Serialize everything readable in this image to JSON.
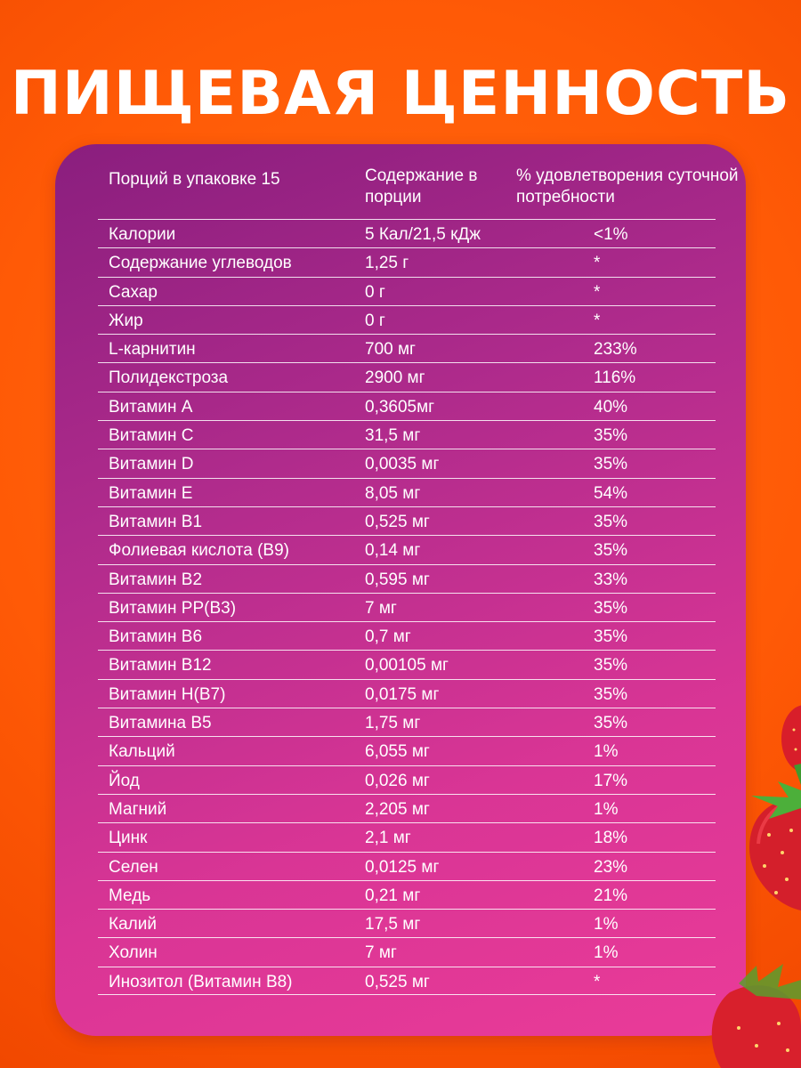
{
  "title": "ПИЩЕВАЯ ЦЕННОСТЬ",
  "header": {
    "col1": "Порций в упаковке 15",
    "col2": "Содержание в порции",
    "col3": "% удовлетворения суточной потребности"
  },
  "rows": [
    {
      "name": "Калории",
      "amount": "5 Кал/21,5 кДж",
      "dv": "<1%"
    },
    {
      "name": "Содержание углеводов",
      "amount": "1,25 г",
      "dv": "*"
    },
    {
      "name": "Сахар",
      "amount": "0 г",
      "dv": "*"
    },
    {
      "name": "Жир",
      "amount": "0 г",
      "dv": "*"
    },
    {
      "name": "L-карнитин",
      "amount": "700 мг",
      "dv": "233%"
    },
    {
      "name": "Полидекстроза",
      "amount": "2900 мг",
      "dv": "116%"
    },
    {
      "name": "Витамин А",
      "amount": "0,3605мг",
      "dv": "40%"
    },
    {
      "name": "Витамин С",
      "amount": "31,5 мг",
      "dv": "35%"
    },
    {
      "name": "Витамин D",
      "amount": "0,0035 мг",
      "dv": "35%"
    },
    {
      "name": "Витамин Е",
      "amount": "8,05 мг",
      "dv": "54%"
    },
    {
      "name": "Витамин В1",
      "amount": "0,525 мг",
      "dv": "35%"
    },
    {
      "name": "Фолиевая кислота (В9)",
      "amount": "0,14 мг",
      "dv": "35%"
    },
    {
      "name": "Витамин В2",
      "amount": "0,595 мг",
      "dv": "33%"
    },
    {
      "name": "Витамин РР(В3)",
      "amount": "7 мг",
      "dv": "35%"
    },
    {
      "name": "Витамин В6",
      "amount": "0,7 мг",
      "dv": "35%"
    },
    {
      "name": "Витамин В12",
      "amount": "0,00105 мг",
      "dv": "35%"
    },
    {
      "name": "Витамин Н(В7)",
      "amount": "0,0175 мг",
      "dv": "35%"
    },
    {
      "name": "Витамина В5",
      "amount": "1,75 мг",
      "dv": "35%"
    },
    {
      "name": "Кальций",
      "amount": "6,055 мг",
      "dv": "1%"
    },
    {
      "name": "Йод",
      "amount": "0,026 мг",
      "dv": "17%"
    },
    {
      "name": "Магний",
      "amount": "2,205 мг",
      "dv": "1%"
    },
    {
      "name": "Цинк",
      "amount": "2,1 мг",
      "dv": "18%"
    },
    {
      "name": "Селен",
      "amount": "0,0125 мг",
      "dv": "23%"
    },
    {
      "name": "Медь",
      "amount": "0,21 мг",
      "dv": "21%"
    },
    {
      "name": "Калий",
      "amount": "17,5 мг",
      "dv": "1%"
    },
    {
      "name": "Холин",
      "amount": "7 мг",
      "dv": "1%"
    },
    {
      "name": "Инозитол (Витамин В8)",
      "amount": "0,525 мг",
      "dv": "*"
    }
  ]
}
